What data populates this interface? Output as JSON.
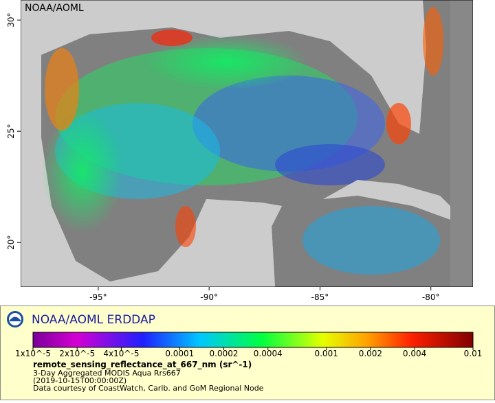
{
  "map": {
    "corner_label": "NOAA/AOML",
    "xlim": [
      -98.5,
      -78.1
    ],
    "ylim": [
      18,
      30.9
    ],
    "xticks": [
      {
        "value": -95,
        "label": "-95°"
      },
      {
        "value": -90,
        "label": "-90°"
      },
      {
        "value": -85,
        "label": "-85°"
      },
      {
        "value": -80,
        "label": "-80°"
      }
    ],
    "yticks": [
      {
        "value": 20,
        "label": "20°"
      },
      {
        "value": 25,
        "label": "25°"
      },
      {
        "value": 30,
        "label": "30°"
      }
    ]
  },
  "legend": {
    "title": "NOAA/AOML ERDDAP",
    "log_scale": true,
    "clim": [
      1e-05,
      0.01
    ],
    "ticks": [
      {
        "value": 1e-05,
        "label": "1x10^-5"
      },
      {
        "value": 2e-05,
        "label": "2x10^-5"
      },
      {
        "value": 4e-05,
        "label": "4x10^-5"
      },
      0.0001,
      0.0002,
      0.0004,
      0.001,
      0.002,
      0.004,
      0.01
    ],
    "variable": "remote_sensing_reflectance_at_667_nm (sr^-1)",
    "dataset": "3-Day Aggregated MODIS Aqua Rrs667",
    "time": "(2019-10-15T00:00:00Z)",
    "credit": "Data courtesy of CoastWatch, Carib. and GoM Regional Node"
  }
}
